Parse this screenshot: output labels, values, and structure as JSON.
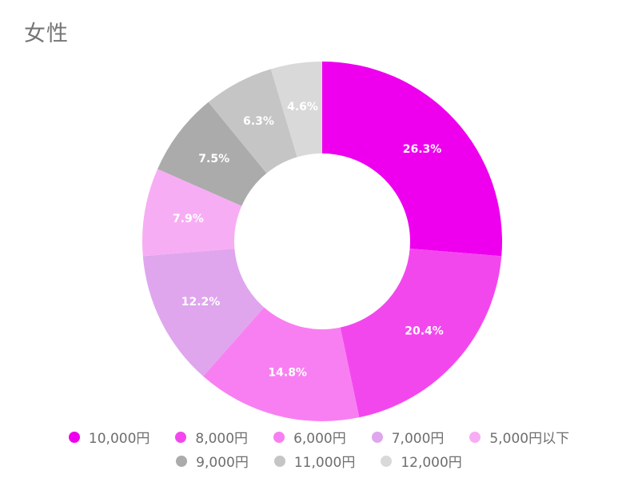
{
  "title": "女性",
  "chart_data": {
    "type": "pie",
    "subtype": "donut",
    "title": "女性",
    "start_angle_deg": 0,
    "direction": "clockwise",
    "label_color": "#ffffff",
    "legend_position": "bottom",
    "slices": [
      {
        "label": "10,000円",
        "value": 26.3,
        "display": "26.3%",
        "color": "#ee00ee"
      },
      {
        "label": "8,000円",
        "value": 20.4,
        "display": "20.4%",
        "color": "#f347ee"
      },
      {
        "label": "6,000円",
        "value": 14.8,
        "display": "14.8%",
        "color": "#f87ff1"
      },
      {
        "label": "7,000円",
        "value": 12.2,
        "display": "12.2%",
        "color": "#dfa6ee"
      },
      {
        "label": "5,000円以下",
        "value": 7.9,
        "display": "7.9%",
        "color": "#f7adf4"
      },
      {
        "label": "9,000円",
        "value": 7.5,
        "display": "7.5%",
        "color": "#ababab"
      },
      {
        "label": "11,000円",
        "value": 6.3,
        "display": "6.3%",
        "color": "#c5c5c5"
      },
      {
        "label": "12,000円",
        "value": 4.6,
        "display": "4.6%",
        "color": "#d9d9d9"
      }
    ]
  },
  "legend": {
    "rows": [
      [
        "10,000円",
        "8,000円",
        "6,000円",
        "7,000円",
        "5,000円以下"
      ],
      [
        "9,000円",
        "11,000円",
        "12,000円"
      ]
    ]
  }
}
